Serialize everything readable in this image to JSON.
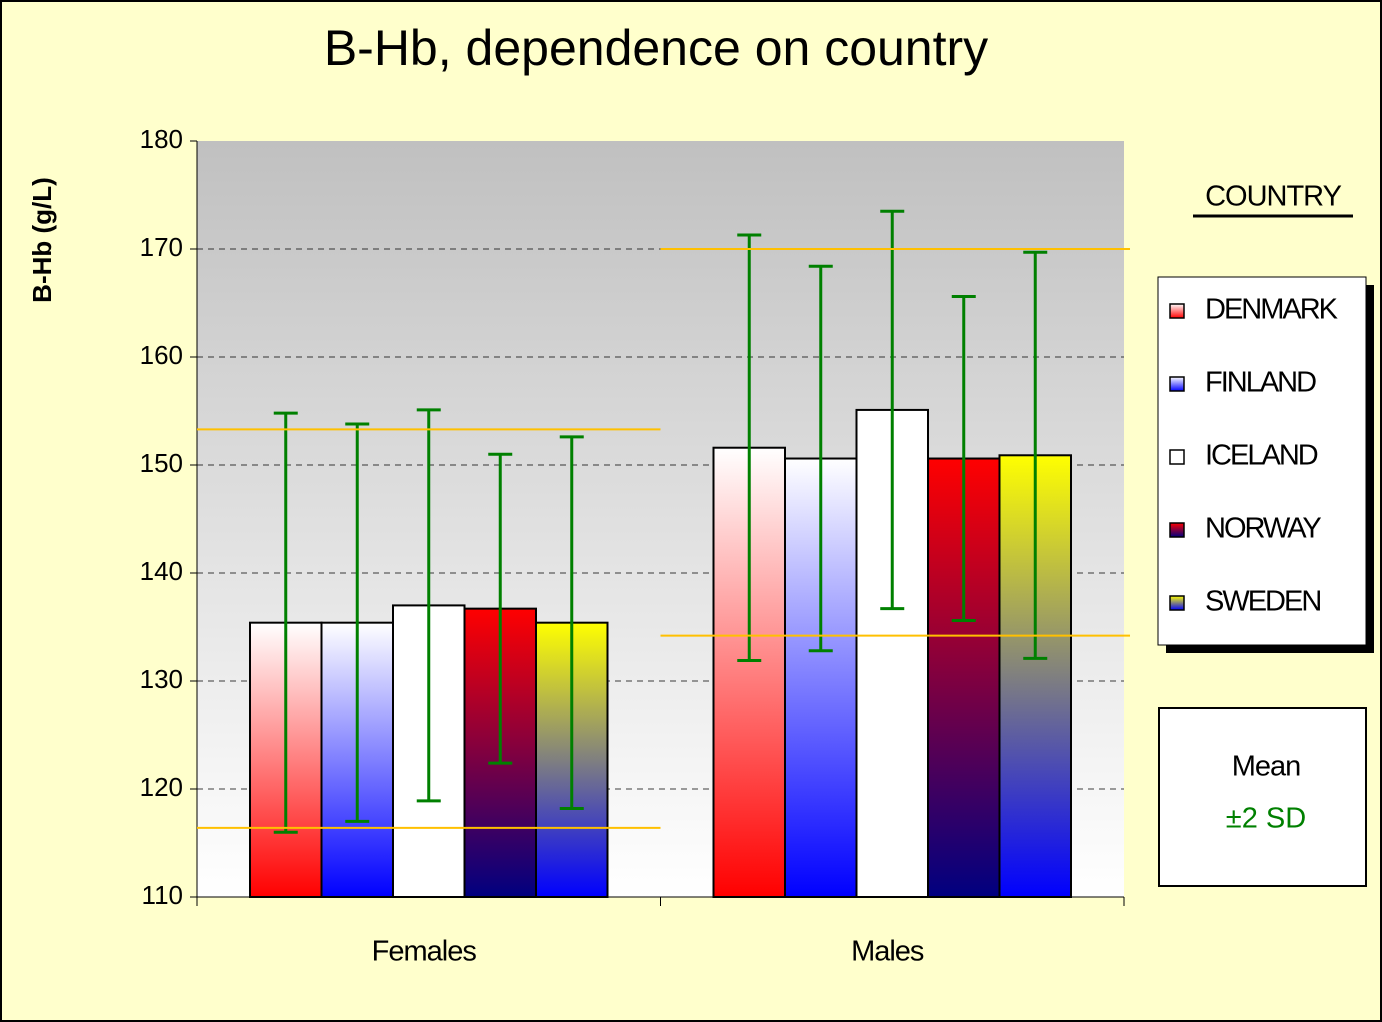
{
  "chart_data": {
    "type": "bar",
    "title": "B-Hb, dependence on country",
    "y_label": "B-Hb (g/L)",
    "categories": [
      "Females",
      "Males"
    ],
    "legend_title": "COUNTRY",
    "series": [
      {
        "name": "DENMARK",
        "color": [
          "#ffffff",
          "#ff0000"
        ],
        "values": [
          135.4,
          151.6
        ],
        "errors": [
          19.4,
          19.7
        ]
      },
      {
        "name": "FINLAND",
        "color": [
          "#ffffff",
          "#0000ff"
        ],
        "values": [
          135.4,
          150.6
        ],
        "errors": [
          18.4,
          17.8
        ]
      },
      {
        "name": "ICELAND",
        "color": [
          "#ffffff",
          "#ffffff"
        ],
        "values": [
          137,
          155.1
        ],
        "errors": [
          18.1,
          18.4
        ]
      },
      {
        "name": "NORWAY",
        "color": [
          "#ff0000",
          "#000080"
        ],
        "values": [
          136.7,
          150.6
        ],
        "errors": [
          14.3,
          15
        ]
      },
      {
        "name": "SWEDEN",
        "color": [
          "#ffff00",
          "#0000ff"
        ],
        "values": [
          135.4,
          150.9
        ],
        "errors": [
          17.2,
          18.8
        ]
      }
    ],
    "error_color": "#008000",
    "reference_ranges": [
      [
        116.4,
        153.3
      ],
      [
        134.2,
        170
      ]
    ],
    "reference_color": "#ffc000",
    "note_lines": [
      "Mean",
      "±2 SD"
    ],
    "ylim": [
      110,
      180
    ],
    "yticks": [
      110,
      120,
      130,
      140,
      150,
      160,
      170,
      180
    ],
    "grid": true
  }
}
